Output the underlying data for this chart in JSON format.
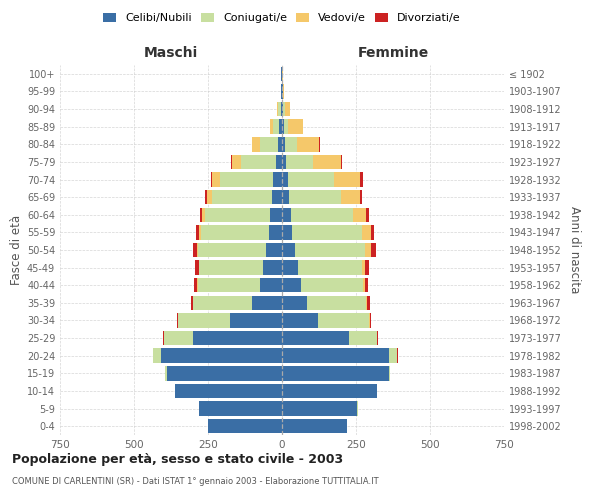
{
  "age_groups": [
    "0-4",
    "5-9",
    "10-14",
    "15-19",
    "20-24",
    "25-29",
    "30-34",
    "35-39",
    "40-44",
    "45-49",
    "50-54",
    "55-59",
    "60-64",
    "65-69",
    "70-74",
    "75-79",
    "80-84",
    "85-89",
    "90-94",
    "95-99",
    "100+"
  ],
  "birth_years": [
    "1998-2002",
    "1993-1997",
    "1988-1992",
    "1983-1987",
    "1978-1982",
    "1973-1977",
    "1968-1972",
    "1963-1967",
    "1958-1962",
    "1953-1957",
    "1948-1952",
    "1943-1947",
    "1938-1942",
    "1933-1937",
    "1928-1932",
    "1923-1927",
    "1918-1922",
    "1913-1917",
    "1908-1912",
    "1903-1907",
    "≤ 1902"
  ],
  "maschi": {
    "celibi": [
      250,
      280,
      360,
      390,
      410,
      300,
      175,
      100,
      75,
      65,
      55,
      45,
      40,
      35,
      30,
      20,
      15,
      10,
      5,
      2,
      2
    ],
    "coniugati": [
      0,
      1,
      2,
      5,
      25,
      100,
      175,
      200,
      210,
      215,
      230,
      230,
      220,
      200,
      180,
      120,
      60,
      20,
      8,
      2,
      1
    ],
    "vedovi": [
      0,
      0,
      0,
      0,
      0,
      0,
      1,
      1,
      1,
      2,
      3,
      5,
      10,
      20,
      25,
      30,
      25,
      10,
      3,
      1,
      0
    ],
    "divorziati": [
      0,
      0,
      0,
      0,
      1,
      2,
      5,
      8,
      10,
      12,
      12,
      10,
      8,
      5,
      5,
      2,
      1,
      1,
      0,
      0,
      0
    ]
  },
  "femmine": {
    "nubili": [
      220,
      255,
      320,
      360,
      360,
      225,
      120,
      85,
      65,
      55,
      45,
      35,
      30,
      25,
      20,
      15,
      10,
      8,
      4,
      2,
      1
    ],
    "coniugate": [
      0,
      1,
      2,
      5,
      30,
      95,
      175,
      200,
      210,
      215,
      235,
      235,
      210,
      175,
      155,
      90,
      40,
      12,
      5,
      1,
      0
    ],
    "vedove": [
      0,
      0,
      0,
      0,
      0,
      1,
      2,
      3,
      5,
      10,
      20,
      30,
      45,
      65,
      90,
      95,
      75,
      50,
      18,
      3,
      1
    ],
    "divorziate": [
      0,
      0,
      0,
      0,
      1,
      2,
      5,
      8,
      10,
      15,
      18,
      12,
      8,
      5,
      8,
      3,
      2,
      2,
      1,
      0,
      0
    ]
  },
  "colors": {
    "celibi_nubili": "#3A6EA5",
    "coniugati": "#C8DFA0",
    "vedovi": "#F5C86A",
    "divorziati": "#CC2222"
  },
  "xlim": 750,
  "title": "Popolazione per età, sesso e stato civile - 2003",
  "subtitle": "COMUNE DI CARLENTINI (SR) - Dati ISTAT 1° gennaio 2003 - Elaborazione TUTTITALIA.IT",
  "ylabel": "Fasce di età",
  "ylabel_right": "Anni di nascita",
  "legend_labels": [
    "Celibi/Nubili",
    "Coniugati/e",
    "Vedovi/e",
    "Divorziati/e"
  ],
  "maschi_label": "Maschi",
  "femmine_label": "Femmine",
  "background_color": "#ffffff",
  "grid_color": "#cccccc"
}
